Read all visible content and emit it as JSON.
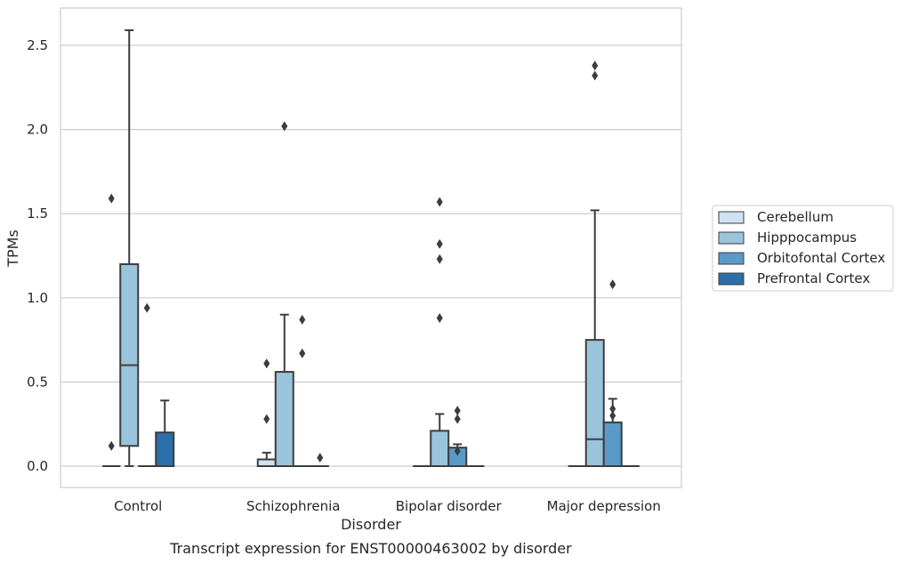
{
  "chart_data": {
    "type": "box",
    "title": "",
    "caption": "Transcript expression for ENST00000463002 by disorder",
    "xlabel": "Disorder",
    "ylabel": "TPMs",
    "ylim": [
      -0.12,
      2.72
    ],
    "yticks": [
      "0.0",
      "0.5",
      "1.0",
      "1.5",
      "2.0",
      "2.5"
    ],
    "grid": "horizontal",
    "legend_position": "right",
    "categories": [
      "Control",
      "Schizophrenia",
      "Bipolar disorder",
      "Major depression"
    ],
    "series": [
      {
        "name": "Cerebellum",
        "color": "#d0e1f2"
      },
      {
        "name": "Hipppocampus",
        "color": "#9ac3dc"
      },
      {
        "name": "Orbitofontal Cortex",
        "color": "#5a9ac8"
      },
      {
        "name": "Prefrontal Cortex",
        "color": "#2b6fab"
      }
    ],
    "boxes": [
      [
        {
          "q1": 0,
          "median": 0,
          "q3": 0,
          "whisker_low": 0,
          "whisker_high": 0,
          "outliers": [
            0.12,
            1.59
          ]
        },
        {
          "q1": 0.12,
          "median": 0.6,
          "q3": 1.2,
          "whisker_low": 0,
          "whisker_high": 2.59,
          "outliers": []
        },
        {
          "q1": 0,
          "median": 0,
          "q3": 0,
          "whisker_low": 0,
          "whisker_high": 0,
          "outliers": [
            0.94
          ]
        },
        {
          "q1": 0,
          "median": 0,
          "q3": 0.2,
          "whisker_low": 0,
          "whisker_high": 0.39,
          "outliers": []
        }
      ],
      [
        {
          "q1": 0,
          "median": 0,
          "q3": 0.04,
          "whisker_low": 0,
          "whisker_high": 0.08,
          "outliers": [
            0.28,
            0.61
          ]
        },
        {
          "q1": 0,
          "median": 0,
          "q3": 0.56,
          "whisker_low": 0,
          "whisker_high": 0.9,
          "outliers": [
            2.02
          ]
        },
        {
          "q1": 0,
          "median": 0,
          "q3": 0,
          "whisker_low": 0,
          "whisker_high": 0,
          "outliers": [
            0.67,
            0.87
          ]
        },
        {
          "q1": 0,
          "median": 0,
          "q3": 0,
          "whisker_low": 0,
          "whisker_high": 0,
          "outliers": [
            0.05
          ]
        }
      ],
      [
        {
          "q1": 0,
          "median": 0,
          "q3": 0,
          "whisker_low": 0,
          "whisker_high": 0,
          "outliers": []
        },
        {
          "q1": 0,
          "median": 0,
          "q3": 0.21,
          "whisker_low": 0,
          "whisker_high": 0.31,
          "outliers": [
            0.88,
            1.23,
            1.32,
            1.57
          ]
        },
        {
          "q1": 0,
          "median": 0,
          "q3": 0.11,
          "whisker_low": 0,
          "whisker_high": 0.13,
          "outliers": [
            0.09,
            0.28,
            0.33
          ]
        },
        {
          "q1": 0,
          "median": 0,
          "q3": 0,
          "whisker_low": 0,
          "whisker_high": 0,
          "outliers": []
        }
      ],
      [
        {
          "q1": 0,
          "median": 0,
          "q3": 0,
          "whisker_low": 0,
          "whisker_high": 0,
          "outliers": []
        },
        {
          "q1": 0,
          "median": 0.16,
          "q3": 0.75,
          "whisker_low": 0,
          "whisker_high": 1.52,
          "outliers": [
            2.32,
            2.38
          ]
        },
        {
          "q1": 0,
          "median": 0,
          "q3": 0.26,
          "whisker_low": 0,
          "whisker_high": 0.4,
          "outliers": [
            0.3,
            0.34,
            1.08
          ]
        },
        {
          "q1": 0,
          "median": 0,
          "q3": 0,
          "whisker_low": 0,
          "whisker_high": 0,
          "outliers": []
        }
      ]
    ]
  }
}
